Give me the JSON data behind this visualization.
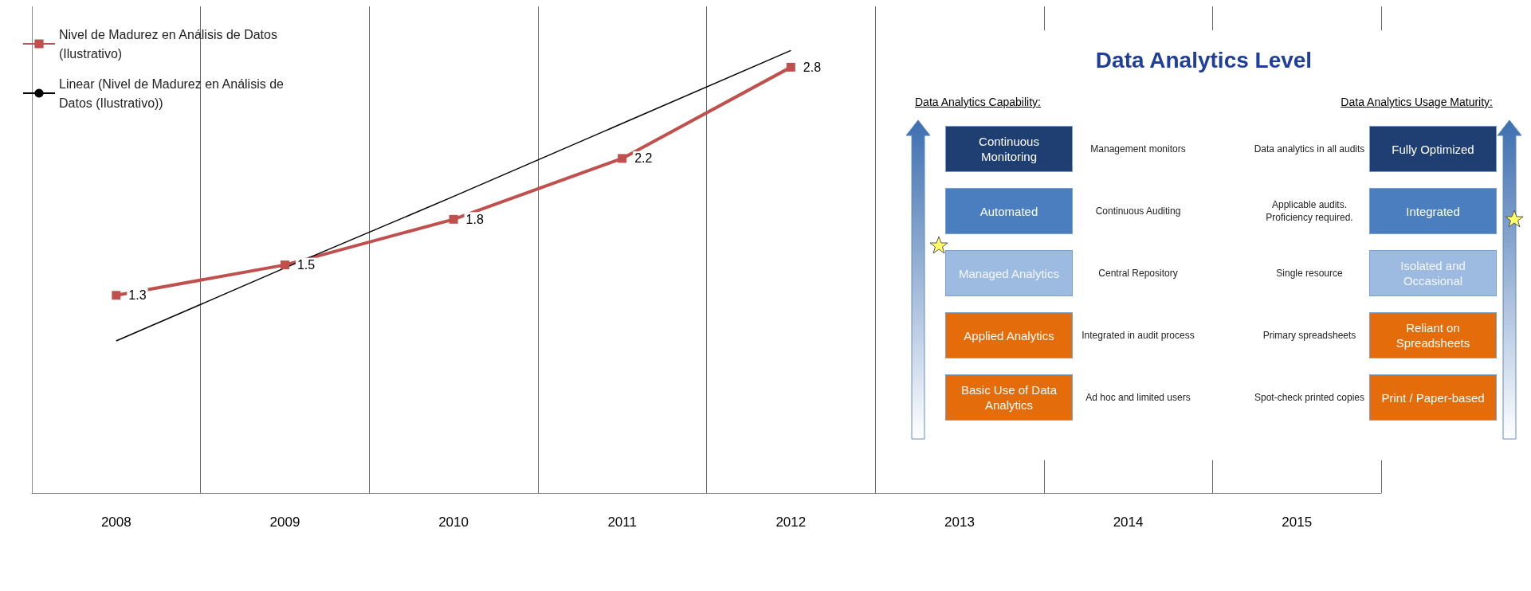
{
  "chart_data": [
    {
      "type": "line",
      "categories": [
        "2008",
        "2009",
        "2010",
        "2011",
        "2012",
        "2013",
        "2014",
        "2015"
      ],
      "ylim": [
        0,
        3.2
      ],
      "tick_labels": "x",
      "grid": "x",
      "legend": "top left",
      "series": [
        {
          "name": "Nivel de Madurez en Análisis de Datos (Ilustrativo)",
          "color": "#c0504d",
          "marker": "square",
          "values": [
            1.3,
            1.5,
            1.8,
            2.2,
            2.8,
            null,
            null,
            null
          ],
          "value_labels": [
            "1.3",
            "1.5",
            "1.8",
            "2.2",
            "2.8",
            null,
            null,
            null
          ]
        },
        {
          "name": "Linear (Nivel de Madurez en Análisis de Datos (Ilustrativo))",
          "color": "#000000",
          "marker": "none",
          "values": [
            1.0,
            1.48,
            1.95,
            2.43,
            2.91,
            null,
            null,
            null
          ]
        }
      ]
    },
    {
      "type": "other",
      "title": "Data Analytics Level",
      "annotations": [
        "Data Analytics Capability:",
        "Data Analytics Usage Maturity:",
        "Continuous Monitoring",
        "Management monitors",
        "Data analytics in all audits",
        "Fully Optimized",
        "Automated",
        "Continuous Auditing",
        "Applicable audits. Proficiency required.",
        "Integrated",
        "Managed Analytics",
        "Central Repository",
        "Single resource",
        "Isolated and Occasional",
        "Applied Analytics",
        "Integrated in audit process",
        "Primary spreadsheets",
        "Reliant on Spreadsheets",
        "Basic Use of Data Analytics",
        "Ad hoc and limited users",
        "Spot-check printed copies",
        "Print / Paper-based"
      ]
    }
  ]
}
